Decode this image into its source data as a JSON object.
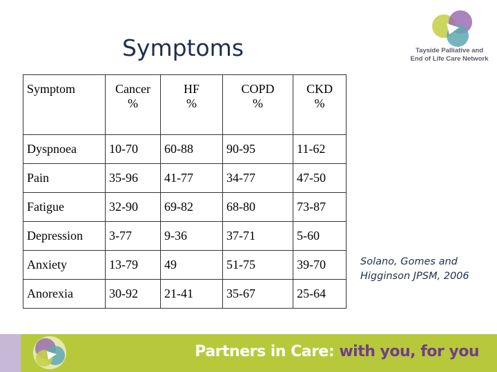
{
  "title": "Symptoms",
  "logo": {
    "lines": [
      "Tayside Palliative and",
      "End of Life Care Network"
    ]
  },
  "table": {
    "header": [
      "Symptom",
      "Cancer\n%",
      "HF\n%",
      "COPD\n%",
      "CKD\n%"
    ],
    "rows": [
      [
        "Dyspnoea",
        "10-70",
        "60-88",
        "90-95",
        "11-62"
      ],
      [
        "Pain",
        "35-96",
        "41-77",
        "34-77",
        "47-50"
      ],
      [
        "Fatigue",
        "32-90",
        "69-82",
        "68-80",
        "73-87"
      ],
      [
        "Depression",
        "3-77",
        "9-36",
        "37-71",
        "5-60"
      ],
      [
        "Anxiety",
        "13-79",
        "49",
        "51-75",
        "39-70"
      ],
      [
        "Anorexia",
        "30-92",
        "21-41",
        "35-67",
        "25-64"
      ]
    ]
  },
  "citation": [
    "Solano, Gomes and",
    "Higginson JPSM, 2006"
  ],
  "footer": [
    "Partners in Care:",
    "with you,",
    "for you"
  ]
}
